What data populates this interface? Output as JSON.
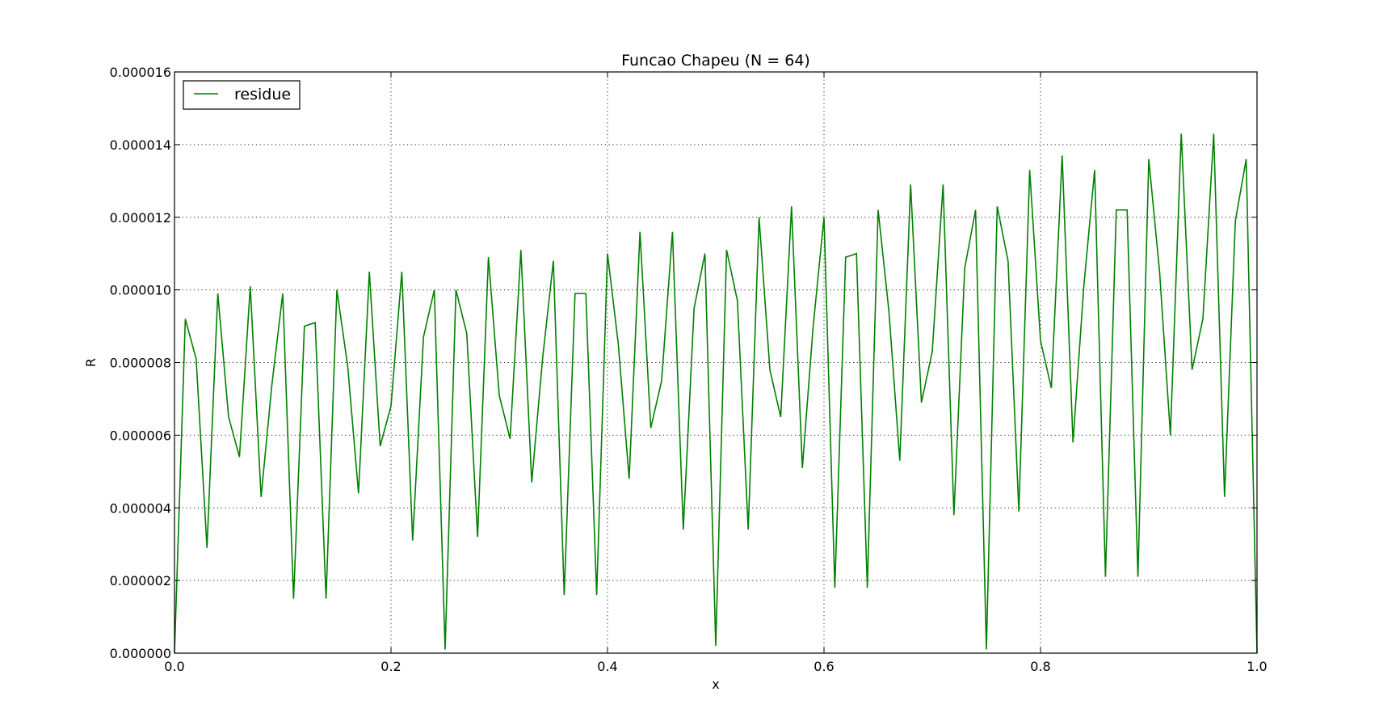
{
  "chart_data": {
    "type": "line",
    "title": "Funcao Chapeu (N = 64)",
    "xlabel": "x",
    "ylabel": "R",
    "xlim": [
      0.0,
      1.0
    ],
    "ylim": [
      0.0,
      1.6e-05
    ],
    "grid": true,
    "legend_position": "top-left",
    "x_ticks": [
      0.0,
      0.2,
      0.4,
      0.6,
      0.8,
      1.0
    ],
    "x_tick_labels": [
      "0.0",
      "0.2",
      "0.4",
      "0.6",
      "0.8",
      "1.0"
    ],
    "y_ticks": [
      0.0,
      2e-06,
      4e-06,
      6e-06,
      8e-06,
      1e-05,
      1.2e-05,
      1.4e-05,
      1.6e-05
    ],
    "y_tick_labels": [
      "0.000000",
      "0.000002",
      "0.000004",
      "0.000006",
      "0.000008",
      "0.000010",
      "0.000012",
      "0.000014",
      "0.000016"
    ],
    "series": [
      {
        "name": "residue",
        "color": "#008000",
        "x": [
          0.0,
          0.01,
          0.02,
          0.03,
          0.04,
          0.05,
          0.06,
          0.07,
          0.08,
          0.09,
          0.1,
          0.11,
          0.12,
          0.13,
          0.14,
          0.15,
          0.16,
          0.17,
          0.18,
          0.19,
          0.2,
          0.21,
          0.22,
          0.23,
          0.24,
          0.25,
          0.26,
          0.27,
          0.28,
          0.29,
          0.3,
          0.31,
          0.32,
          0.33,
          0.34,
          0.35,
          0.36,
          0.37,
          0.38,
          0.39,
          0.4,
          0.41,
          0.42,
          0.43,
          0.44,
          0.45,
          0.46,
          0.47,
          0.48,
          0.49,
          0.5,
          0.51,
          0.52,
          0.53,
          0.54,
          0.55,
          0.56,
          0.57,
          0.58,
          0.59,
          0.6,
          0.61,
          0.62,
          0.63,
          0.64,
          0.65,
          0.66,
          0.67,
          0.68,
          0.69,
          0.7,
          0.71,
          0.72,
          0.73,
          0.74,
          0.75,
          0.76,
          0.77,
          0.78,
          0.79,
          0.8,
          0.81,
          0.82,
          0.83,
          0.84,
          0.85,
          0.86,
          0.87,
          0.88,
          0.89,
          0.9,
          0.91,
          0.92,
          0.93,
          0.94,
          0.95,
          0.96,
          0.97,
          0.98,
          0.99,
          1.0
        ],
        "values": [
          0.0,
          9.2e-06,
          8.1e-06,
          2.9e-06,
          9.9e-06,
          6.5e-06,
          5.4e-06,
          1.01e-05,
          4.3e-06,
          7.4e-06,
          9.9e-06,
          1.5e-06,
          9e-06,
          9.1e-06,
          1.5e-06,
          1e-05,
          7.9e-06,
          4.4e-06,
          1.05e-05,
          5.7e-06,
          6.8e-06,
          1.05e-05,
          3.1e-06,
          8.7e-06,
          1e-05,
          1e-07,
          1e-05,
          8.8e-06,
          3.2e-06,
          1.09e-05,
          7.1e-06,
          5.9e-06,
          1.11e-05,
          4.7e-06,
          8.1e-06,
          1.08e-05,
          1.6e-06,
          9.9e-06,
          9.9e-06,
          1.6e-06,
          1.1e-05,
          8.5e-06,
          4.8e-06,
          1.16e-05,
          6.2e-06,
          7.5e-06,
          1.16e-05,
          3.4e-06,
          9.5e-06,
          1.1e-05,
          2e-07,
          1.11e-05,
          9.7e-06,
          3.4e-06,
          1.2e-05,
          7.8e-06,
          6.5e-06,
          1.23e-05,
          5.1e-06,
          9e-06,
          1.2e-05,
          1.8e-06,
          1.09e-05,
          1.1e-05,
          1.8e-06,
          1.22e-05,
          9.4e-06,
          5.3e-06,
          1.29e-05,
          6.9e-06,
          8.3e-06,
          1.29e-05,
          3.8e-06,
          1.06e-05,
          1.22e-05,
          1e-07,
          1.23e-05,
          1.08e-05,
          3.9e-06,
          1.33e-05,
          8.6e-06,
          7.3e-06,
          1.37e-05,
          5.8e-06,
          1.01e-05,
          1.33e-05,
          2.1e-06,
          1.22e-05,
          1.22e-05,
          2.1e-06,
          1.36e-05,
          1.05e-05,
          6e-06,
          1.43e-05,
          7.8e-06,
          9.2e-06,
          1.43e-05,
          4.3e-06,
          1.19e-05,
          1.36e-05,
          0.0
        ]
      }
    ]
  }
}
